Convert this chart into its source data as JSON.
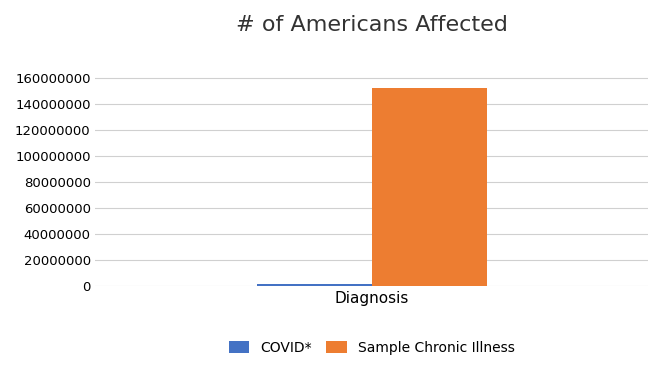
{
  "title": "# of Americans Affected",
  "xlabel": "Diagnosis",
  "categories": [
    "COVID*",
    "Sample Chronic Illness"
  ],
  "values": [
    1700000,
    152000000
  ],
  "colors": [
    "#4472C4",
    "#ED7D31"
  ],
  "ylim": [
    0,
    180000000
  ],
  "yticks": [
    0,
    20000000,
    40000000,
    60000000,
    80000000,
    100000000,
    120000000,
    140000000,
    160000000
  ],
  "legend_labels": [
    "COVID*",
    "Sample Chronic Illness"
  ],
  "background_color": "#ffffff",
  "grid_color": "#d0d0d0",
  "title_fontsize": 16,
  "label_fontsize": 11,
  "tick_fontsize": 9.5
}
